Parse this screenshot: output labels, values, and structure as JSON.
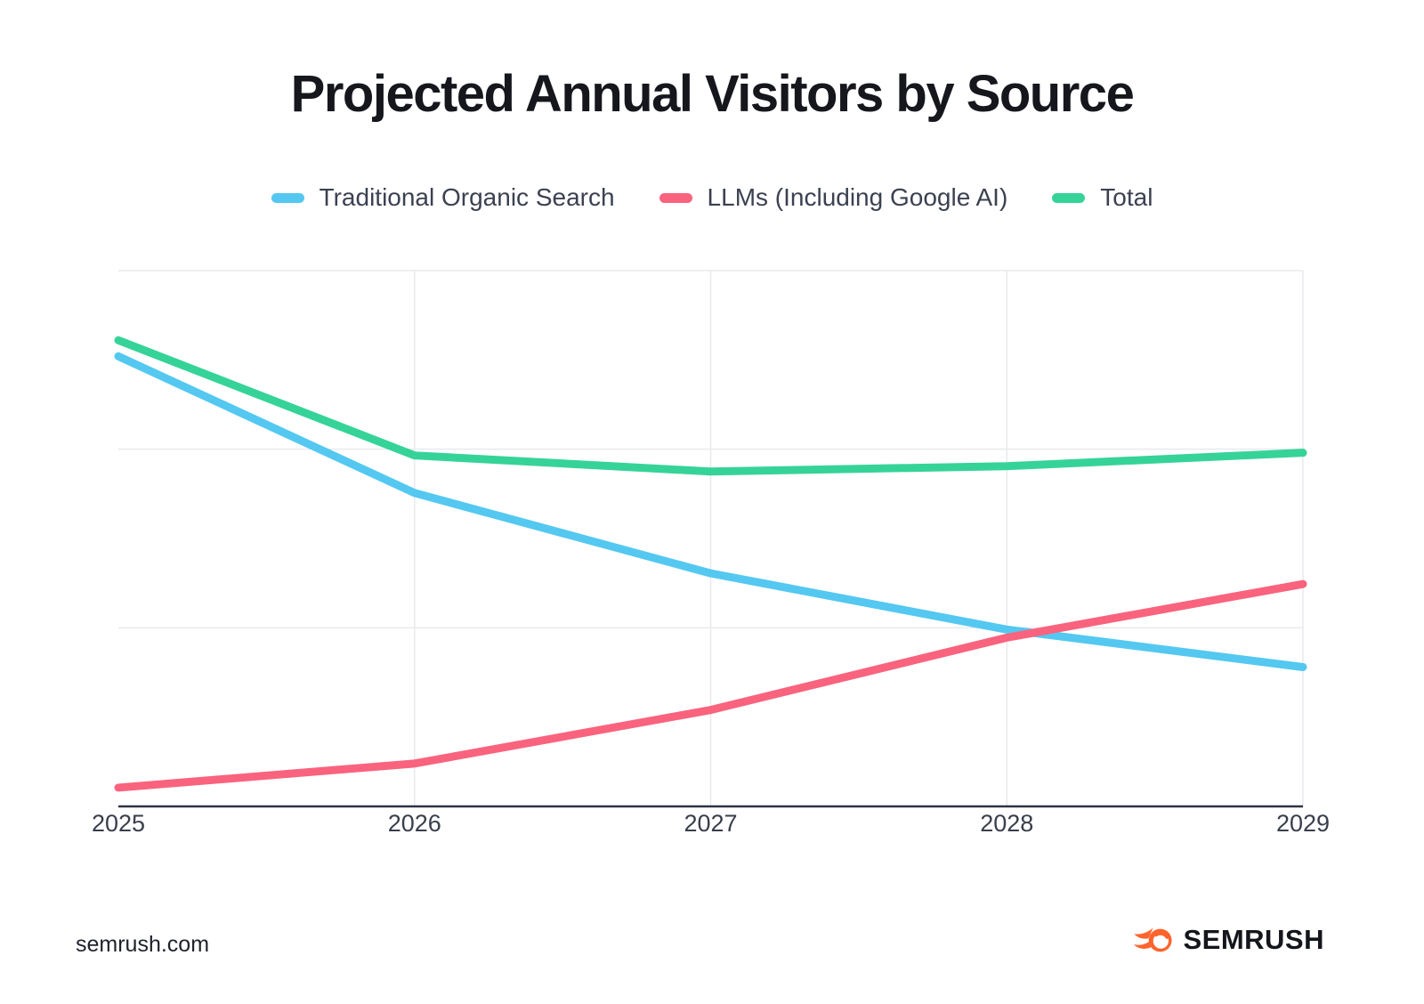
{
  "title": "Projected Annual Visitors by Source",
  "legend": [
    {
      "label": "Traditional Organic Search",
      "color": "#54C8F0"
    },
    {
      "label": "LLMs (Including Google AI)",
      "color": "#F9637E"
    },
    {
      "label": "Total",
      "color": "#36D399"
    }
  ],
  "footer": {
    "site": "semrush.com",
    "logo_text": "SEMRUSH",
    "logo_color": "#FF642D"
  },
  "chart_data": {
    "type": "line",
    "title": "Projected Annual Visitors by Source",
    "x": [
      2025,
      2026,
      2027,
      2028,
      2029
    ],
    "series": [
      {
        "name": "Traditional Organic Search",
        "color": "#54C8F0",
        "values": [
          84,
          58.5,
          43.5,
          33,
          26
        ]
      },
      {
        "name": "LLMs (Including Google AI)",
        "color": "#F9637E",
        "values": [
          3.5,
          8,
          18,
          31.5,
          41.5
        ]
      },
      {
        "name": "Total",
        "color": "#36D399",
        "values": [
          87,
          65.5,
          62.5,
          63.5,
          66
        ]
      }
    ],
    "xlabel": "",
    "ylabel": "",
    "ylim": [
      0,
      100
    ],
    "y_tick_labels": [],
    "values_are_estimated_relative_scale": true,
    "grid": {
      "horizontal": true,
      "vertical": true,
      "color": "#e8eaee"
    },
    "axis_line_color": "#2e3344",
    "legend_position": "top",
    "line_width": 9
  }
}
